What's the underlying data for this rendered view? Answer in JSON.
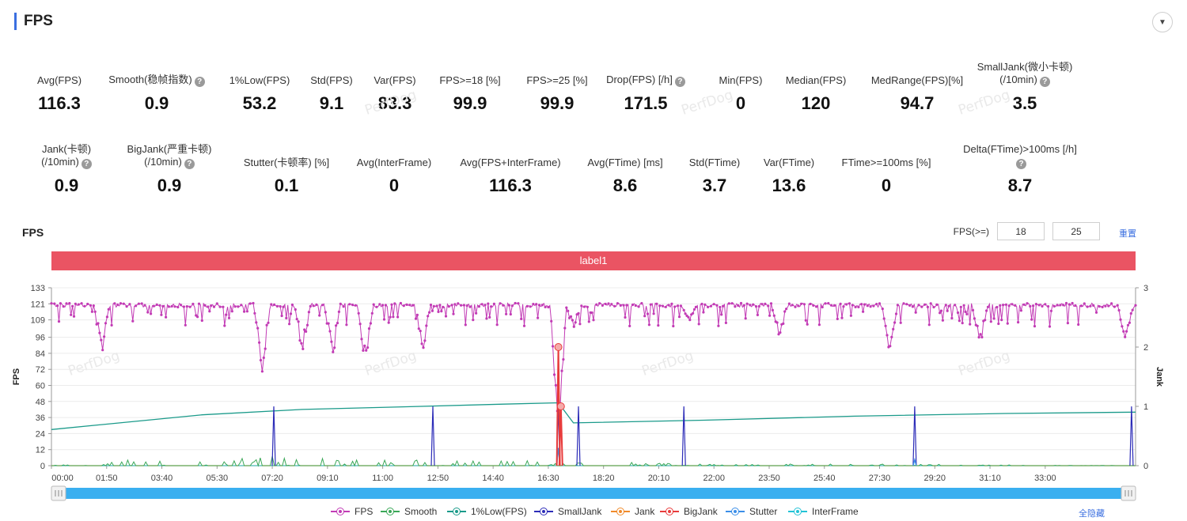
{
  "header": {
    "title": "FPS"
  },
  "icons": {
    "collapse": "chevron-down-icon",
    "help": "question-icon"
  },
  "metrics_row1": [
    {
      "label": "Avg(FPS)",
      "value": "116.3",
      "help": false
    },
    {
      "label": "Smooth(稳帧指数)",
      "value": "0.9",
      "help": true
    },
    {
      "label": "1%Low(FPS)",
      "value": "53.2",
      "help": false
    },
    {
      "label": "Std(FPS)",
      "value": "9.1",
      "help": false
    },
    {
      "label": "Var(FPS)",
      "value": "83.3",
      "help": false
    },
    {
      "label": "FPS>=18 [%]",
      "value": "99.9",
      "help": false
    },
    {
      "label": "FPS>=25 [%]",
      "value": "99.9",
      "help": false
    },
    {
      "label": "Drop(FPS) [/h]",
      "value": "171.5",
      "help": true
    },
    {
      "label": "Min(FPS)",
      "value": "0",
      "help": false
    },
    {
      "label": "Median(FPS)",
      "value": "120",
      "help": false
    },
    {
      "label": "MedRange(FPS)[%]",
      "value": "94.7",
      "help": false
    },
    {
      "label": "SmallJank(微小卡顿)",
      "label2": "(/10min)",
      "value": "3.5",
      "help": true
    }
  ],
  "metrics_row2": [
    {
      "label": "Jank(卡顿)",
      "label2": "(/10min)",
      "value": "0.9",
      "help": true
    },
    {
      "label": "BigJank(严重卡顿)",
      "label2": "(/10min)",
      "value": "0.9",
      "help": true
    },
    {
      "label": "Stutter(卡顿率) [%]",
      "value": "0.1",
      "help": false
    },
    {
      "label": "Avg(InterFrame)",
      "value": "0",
      "help": false
    },
    {
      "label": "Avg(FPS+InterFrame)",
      "value": "116.3",
      "help": false
    },
    {
      "label": "Avg(FTime) [ms]",
      "value": "8.6",
      "help": false
    },
    {
      "label": "Std(FTime)",
      "value": "3.7",
      "help": false
    },
    {
      "label": "Var(FTime)",
      "value": "13.6",
      "help": false
    },
    {
      "label": "FTime>=100ms [%]",
      "value": "0",
      "help": false
    },
    {
      "label": "Delta(FTime)>100ms [/h]",
      "value": "8.7",
      "help": true
    }
  ],
  "chart_header": {
    "title": "FPS",
    "filter_label": "FPS(>=)",
    "filter_value_1": "18",
    "filter_value_2": "25",
    "reset_label": "重置"
  },
  "label_band": "label1",
  "watermark": "PerfDog",
  "legend_hide_all": "全隐藏",
  "chart_data": {
    "type": "line",
    "ylabel": "FPS",
    "y2label": "Jank",
    "ylim": [
      0,
      133
    ],
    "y2lim": [
      0,
      3
    ],
    "yticks": [
      0,
      12,
      24,
      36,
      48,
      60,
      72,
      84,
      96,
      109,
      121,
      133
    ],
    "y2ticks": [
      0,
      1,
      2,
      3
    ],
    "x_ticks": [
      "00:00",
      "01:50",
      "03:40",
      "05:30",
      "07:20",
      "09:10",
      "11:00",
      "12:50",
      "14:40",
      "16:30",
      "18:20",
      "20:10",
      "22:00",
      "23:50",
      "25:40",
      "27:30",
      "29:20",
      "31:10",
      "33:00"
    ],
    "x_range_seconds": [
      0,
      2160
    ],
    "grid": true,
    "legend_position": "bottom",
    "colors": {
      "FPS": "#c23bb5",
      "Smooth": "#3aa757",
      "1%Low(FPS)": "#1a9a8a",
      "SmallJank": "#2c2cb8",
      "Jank": "#f08a2a",
      "BigJank": "#e83b3b",
      "Stutter": "#3b8ee8",
      "InterFrame": "#22c3d6"
    },
    "series": [
      {
        "name": "FPS",
        "baseline": 120,
        "dips": [
          [
            100,
            80
          ],
          [
            420,
            64
          ],
          [
            500,
            80
          ],
          [
            560,
            76
          ],
          [
            625,
            68
          ],
          [
            740,
            84
          ],
          [
            1010,
            0
          ],
          [
            1040,
            102
          ],
          [
            1270,
            105
          ],
          [
            1450,
            96
          ],
          [
            1670,
            84
          ],
          [
            1850,
            86
          ],
          [
            2140,
            90
          ]
        ]
      },
      {
        "name": "Smooth",
        "points": [
          [
            0,
            0
          ],
          [
            120,
            4
          ],
          [
            420,
            6
          ],
          [
            840,
            3
          ],
          [
            1010,
            3
          ],
          [
            1270,
            1
          ],
          [
            1690,
            1
          ],
          [
            2160,
            0
          ]
        ]
      },
      {
        "name": "1%Low(FPS)",
        "points": [
          [
            0,
            27
          ],
          [
            300,
            38
          ],
          [
            500,
            42
          ],
          [
            700,
            44
          ],
          [
            900,
            46
          ],
          [
            1010,
            47
          ],
          [
            1040,
            32
          ],
          [
            1300,
            34
          ],
          [
            1600,
            37
          ],
          [
            1900,
            39
          ],
          [
            2160,
            40
          ]
        ]
      },
      {
        "name": "SmallJank",
        "spikes": [
          [
            443,
            1
          ],
          [
            760,
            1
          ],
          [
            1010,
            1
          ],
          [
            1050,
            1
          ],
          [
            1260,
            1
          ],
          [
            1720,
            1
          ],
          [
            2152,
            1
          ]
        ]
      },
      {
        "name": "Jank",
        "points": [
          [
            0,
            0
          ],
          [
            2160,
            0
          ]
        ]
      },
      {
        "name": "BigJank",
        "spikes": [
          [
            1010,
            2
          ],
          [
            1015,
            1
          ]
        ]
      },
      {
        "name": "Stutter",
        "spikes": [
          [
            1010,
            0.3
          ],
          [
            1720,
            0.1
          ]
        ]
      },
      {
        "name": "InterFrame",
        "points": [
          [
            0,
            0
          ],
          [
            2160,
            0
          ]
        ]
      }
    ]
  }
}
